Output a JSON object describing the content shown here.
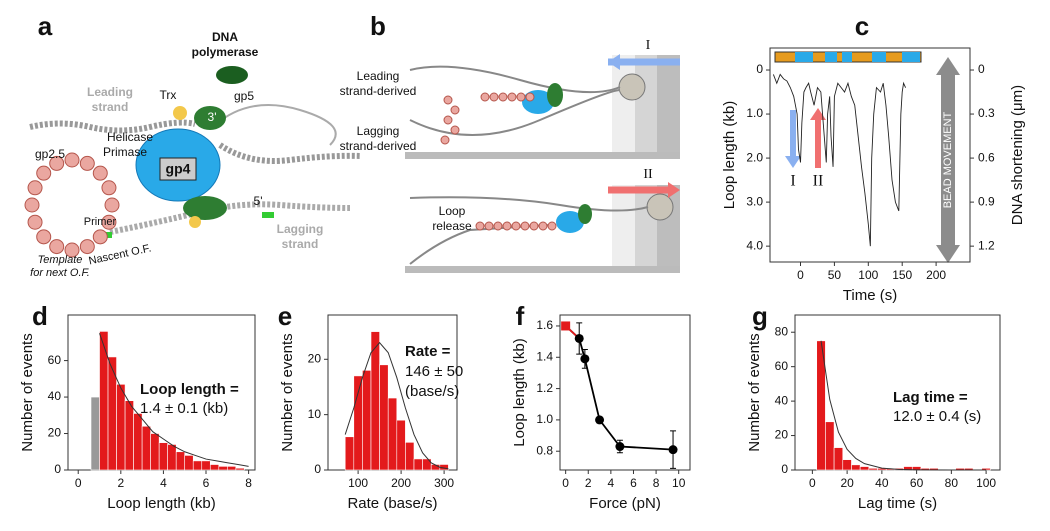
{
  "panel_labels": [
    "a",
    "b",
    "c",
    "d",
    "e",
    "f",
    "g"
  ],
  "diagram_a": {
    "dna_polymerase": [
      "DNA",
      "polymerase"
    ],
    "leading_strand": [
      "Leading",
      "strand"
    ],
    "trx": "Trx",
    "gp5": "gp5",
    "three_prime": "3'",
    "helicase": "Helicase",
    "primase": "Primase",
    "gp4": "gp4",
    "gp2_5": "gp2.5",
    "five_prime": "5'",
    "lagging_strand": [
      "Lagging",
      "strand"
    ],
    "primer": "Primer",
    "nascent": "Nascent O.F.",
    "template": [
      "Template",
      "for next O.F."
    ]
  },
  "diagram_b": {
    "arrow_1": "I",
    "leading_derived": [
      "Leading",
      "strand-derived"
    ],
    "lagging_derived": [
      "Lagging",
      "strand-derived"
    ],
    "arrow_2": "II",
    "loop_release": [
      "Loop",
      "release"
    ]
  },
  "chart_data": [
    {
      "type": "line",
      "xlabel": "Time (s)",
      "ylabel": "Loop length (kb)",
      "y2label": "DNA shortening (μm)",
      "x": [
        -40,
        -35,
        -30,
        -25,
        -20,
        -15,
        -10,
        -5,
        -3,
        0,
        2,
        5,
        8,
        12,
        15,
        20,
        25,
        30,
        35,
        38,
        40,
        43,
        45,
        48,
        50,
        55,
        60,
        65,
        70,
        75,
        80,
        85,
        90,
        95,
        100,
        103,
        105,
        108,
        112,
        118,
        122,
        126,
        130,
        135,
        140,
        145,
        148,
        150,
        152,
        155
      ],
      "series": [
        {
          "color": "#222222",
          "values": [
            0.1,
            0.3,
            0.1,
            0.2,
            0.25,
            0.4,
            0.6,
            1.0,
            1.8,
            2.1,
            1.2,
            0.5,
            0.4,
            0.3,
            0.5,
            0.8,
            0.4,
            0.5,
            1.5,
            2.1,
            1.0,
            0.6,
            1.5,
            2.2,
            0.6,
            0.3,
            0.4,
            0.5,
            0.3,
            0.6,
            0.8,
            1.5,
            2.2,
            2.8,
            3.5,
            4.0,
            2.0,
            1.0,
            0.4,
            0.5,
            0.3,
            0.8,
            1.5,
            2.5,
            3.0,
            3.2,
            1.0,
            0.5,
            0.3,
            0.4
          ]
        }
      ],
      "xlim": [
        -45,
        250
      ],
      "xticks": [
        0,
        50,
        100,
        150,
        200
      ],
      "ylim": [
        4.36,
        -0.5
      ],
      "yticks": [
        0,
        {
          "value": 1,
          "label": "1.0"
        },
        {
          "value": 2,
          "label": "2.0"
        },
        {
          "value": 3,
          "label": "3.0"
        },
        {
          "value": 4,
          "label": "4.0"
        }
      ],
      "y2lim": [
        1.308,
        -0.15
      ],
      "y2ticks": [
        0,
        0.3,
        0.6,
        0.9,
        1.2
      ],
      "annotations": [
        "BEAD MOVEMENT",
        "I",
        "II"
      ]
    },
    {
      "type": "histogram",
      "xlabel": "Loop length (kb)",
      "ylabel": "Number of events",
      "series": [
        {
          "color": "#999999",
          "bins": [
            0.6,
            1.0
          ],
          "values": [
            40
          ]
        },
        {
          "color": "#e31a1c",
          "bins": [
            1.0,
            1.4,
            1.8,
            2.2,
            2.6,
            3.0,
            3.4,
            3.8,
            4.2,
            4.6,
            5.0,
            5.4,
            5.8,
            6.2,
            6.6,
            7.0,
            7.4,
            7.8
          ],
          "values": [
            76,
            62,
            47,
            38,
            31,
            24,
            20,
            15,
            14,
            10,
            8,
            5,
            5,
            3,
            2,
            2,
            1
          ]
        }
      ],
      "fit": {
        "color": "#333333",
        "x": [
          1,
          1.5,
          2,
          2.5,
          3,
          3.5,
          4,
          4.5,
          5,
          5.5,
          6,
          6.5,
          7,
          7.5,
          8
        ],
        "y": [
          75,
          58,
          45,
          35,
          28,
          21,
          17,
          13,
          10,
          8,
          6,
          5,
          4,
          3,
          2
        ]
      },
      "xlim": [
        -0.48,
        8.3
      ],
      "xticks": [
        0,
        2,
        4,
        6,
        8
      ],
      "ylim": [
        0,
        85
      ],
      "yticks": [
        0,
        20,
        40,
        60
      ],
      "annotations": [
        "Loop length =",
        "1.4 ± 0.1 (kb)"
      ]
    },
    {
      "type": "histogram",
      "xlabel": "Rate (base/s)",
      "ylabel": "Number of events",
      "series": [
        {
          "color": "#e31a1c",
          "bins": [
            70,
            90,
            110,
            130,
            150,
            170,
            190,
            210,
            230,
            250,
            270,
            290,
            310
          ],
          "values": [
            6,
            17,
            18,
            25,
            19,
            13,
            9,
            5,
            2,
            2,
            1,
            1
          ]
        }
      ],
      "fit": {
        "color": "#333333",
        "x": [
          70,
          90,
          110,
          130,
          150,
          170,
          190,
          210,
          230,
          250,
          270,
          290,
          310
        ],
        "y": [
          6.4,
          11.2,
          16.7,
          21.2,
          23,
          21.2,
          16.7,
          11.2,
          6.4,
          3.1,
          1.3,
          0.5,
          0.2
        ]
      },
      "xlim": [
        30,
        330
      ],
      "xticks": [
        100,
        200,
        300
      ],
      "ylim": [
        0,
        28
      ],
      "yticks": [
        0,
        10,
        20
      ],
      "annotations": [
        "Rate =",
        "146 ± 50",
        "(base/s)"
      ]
    },
    {
      "type": "line",
      "xlabel": "Force (pN)",
      "ylabel": "Loop length (kb)",
      "x": [
        0,
        1.2,
        1.7,
        3,
        4.8,
        9.5
      ],
      "series": [
        {
          "color": "#000000",
          "values": [
            1.6,
            1.52,
            1.39,
            1.0,
            0.83,
            0.81
          ],
          "errors": [
            null,
            0.1,
            0.06,
            null,
            0.04,
            0.12
          ],
          "markers": true
        }
      ],
      "highlight_color": "#e31a1c",
      "xlim": [
        -0.5,
        11
      ],
      "xticks": [
        0,
        2,
        4,
        6,
        8,
        10
      ],
      "ylim": [
        0.68,
        1.67
      ],
      "yticks": [
        0.8,
        {
          "value": 1,
          "label": "1.0"
        },
        1.2,
        1.4,
        1.6
      ]
    },
    {
      "type": "histogram",
      "xlabel": "Lag time (s)",
      "ylabel": "Number of events",
      "series": [
        {
          "color": "#e31a1c",
          "bins": [
            2.5,
            7.5,
            12.5,
            17.5,
            22.5,
            27.5,
            32.5,
            37.5,
            42.5,
            47.5,
            52.5,
            57.5,
            62.5,
            67.5,
            72.5,
            77.5,
            82.5,
            87.5,
            92.5,
            97.5,
            102.5
          ],
          "values": [
            75,
            28,
            13,
            6,
            3,
            2,
            1,
            1,
            1,
            1,
            2,
            2,
            1,
            1,
            0,
            0,
            1,
            1,
            0,
            1
          ]
        }
      ],
      "fit": {
        "color": "#333333",
        "x": [
          5,
          10,
          15,
          20,
          25,
          30,
          40,
          50,
          60,
          80,
          100
        ],
        "y": [
          75,
          41,
          22,
          12,
          6.7,
          3.7,
          1.1,
          0.3,
          0.1,
          0,
          0
        ]
      },
      "xlim": [
        -10,
        108
      ],
      "xticks": [
        0,
        20,
        40,
        60,
        80,
        100
      ],
      "ylim": [
        0,
        90
      ],
      "yticks": [
        0,
        20,
        40,
        60,
        80
      ],
      "annotations": [
        "Lag time =",
        "12.0 ± 0.4 (s)"
      ]
    }
  ]
}
